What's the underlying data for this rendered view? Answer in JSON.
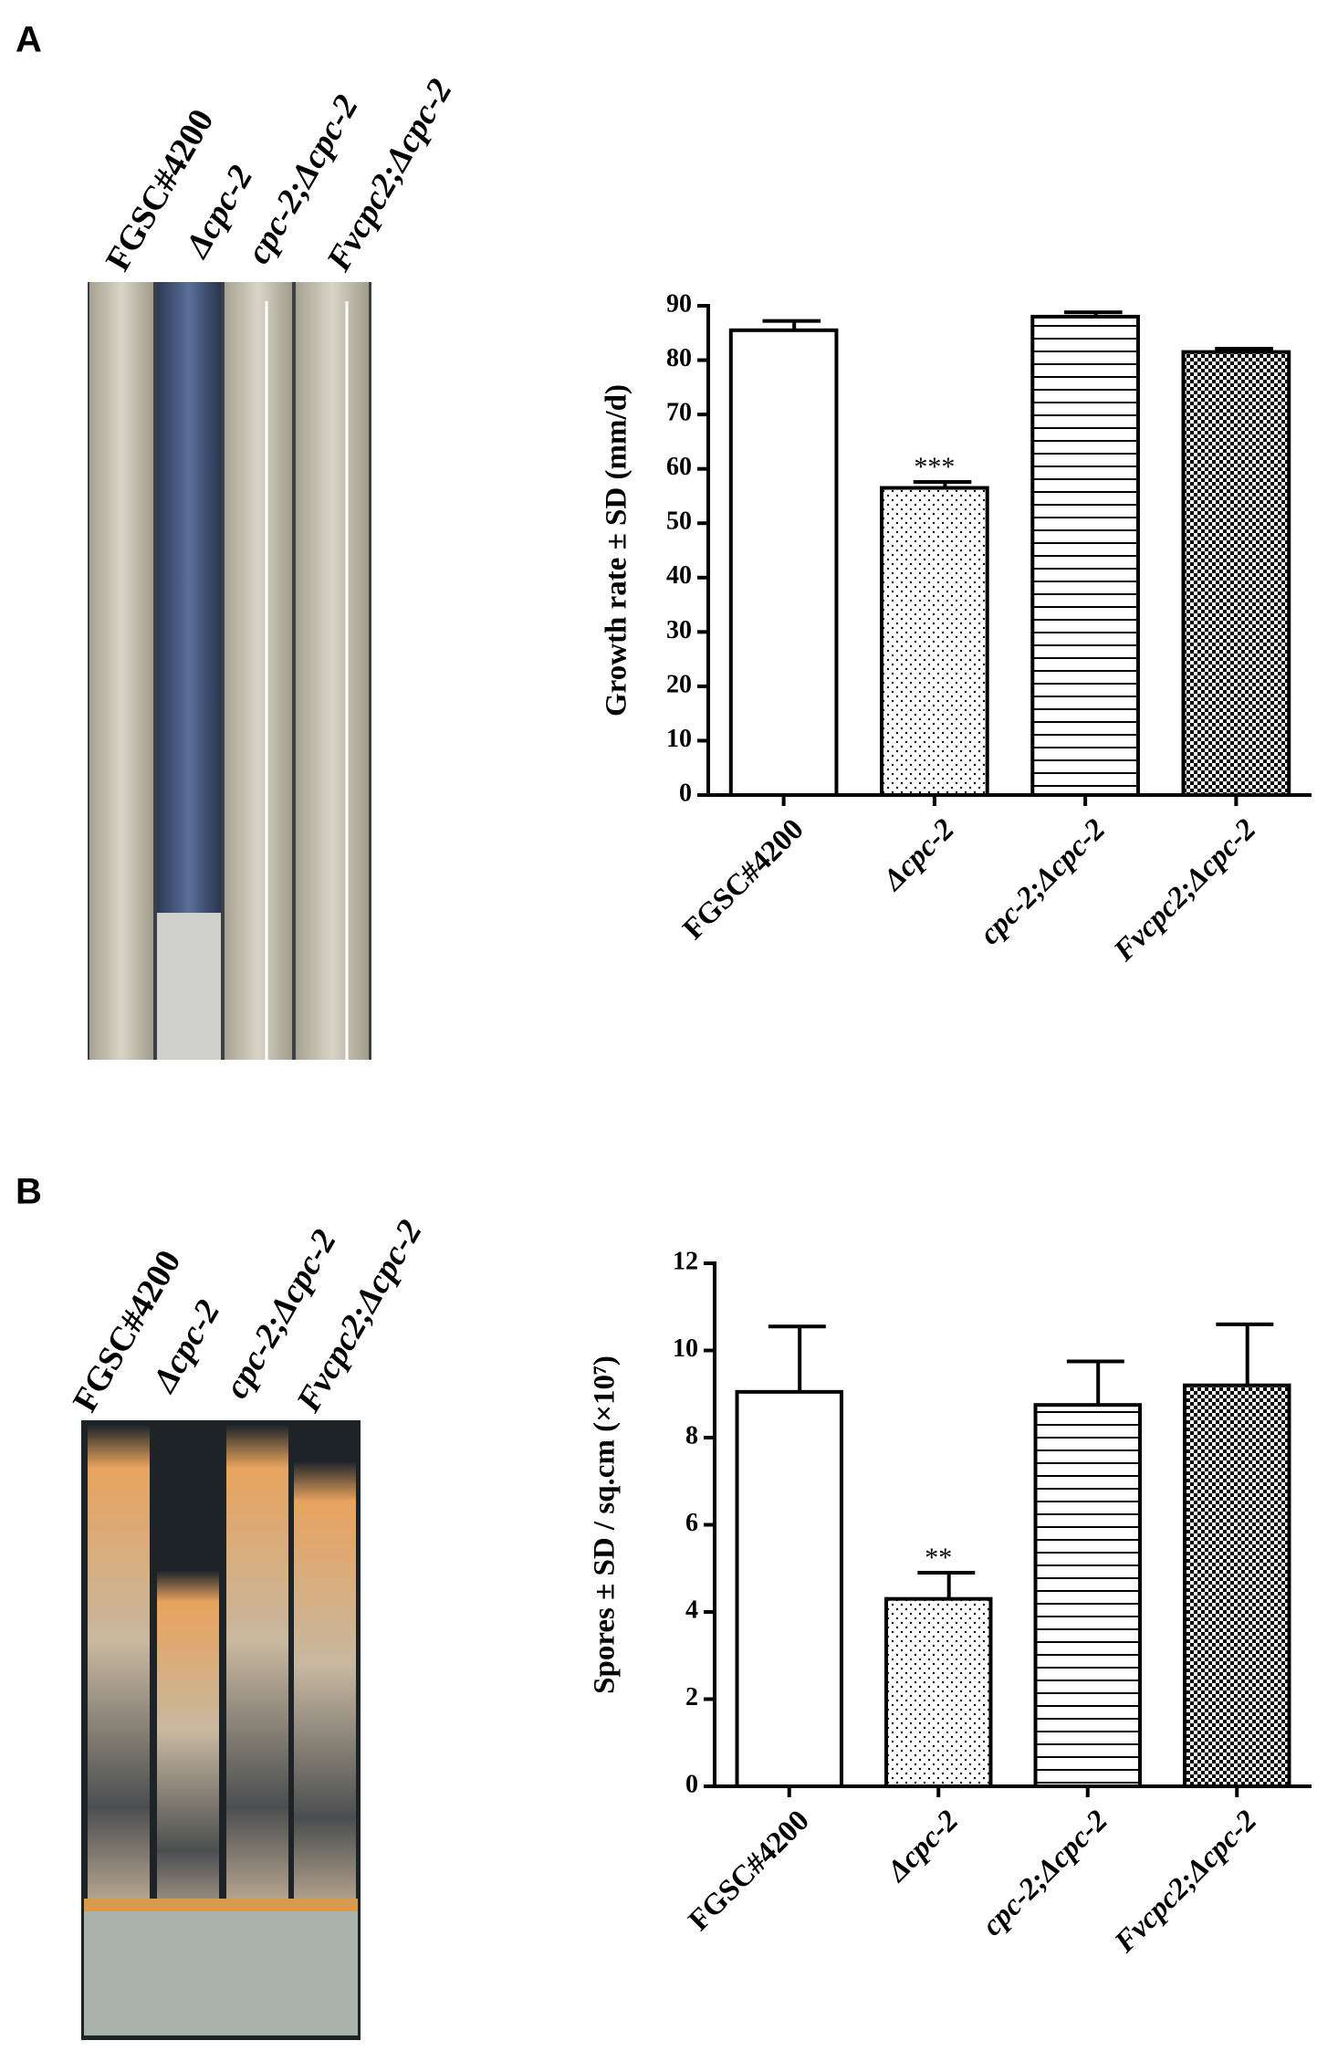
{
  "panels": [
    {
      "label": "A",
      "tube_labels": [
        "FGSC#4200",
        "Δcpc-2",
        "cpc-2;Δcpc-2",
        "Fvcpc2;Δcpc-2"
      ]
    },
    {
      "label": "B",
      "tube_labels": [
        "FGSC#4200",
        "Δcpc-2",
        "cpc-2;Δcpc-2",
        "Fvcpc2;Δcpc-2"
      ]
    }
  ],
  "chart_data": [
    {
      "type": "bar",
      "ylabel": "Growth rate ± SD (mm/d)",
      "categories": [
        "FGSC#4200",
        "Δcpc-2",
        "cpc-2;Δcpc-2",
        "Fvcpc2;Δcpc-2"
      ],
      "values": [
        85.5,
        56.5,
        88,
        81.5
      ],
      "errors": [
        1.7,
        1.1,
        0.8,
        0.6
      ],
      "significance": [
        null,
        "***",
        null,
        null
      ],
      "patterns": [
        "none",
        "dots",
        "hlines",
        "checker"
      ],
      "color": "#000000",
      "ylim": [
        0,
        90
      ],
      "yticks": [
        0,
        10,
        20,
        30,
        40,
        50,
        60,
        70,
        80,
        90
      ]
    },
    {
      "type": "bar",
      "ylabel": "Spores ± SD / sq.cm (×10⁷)",
      "categories": [
        "FGSC#4200",
        "Δcpc-2",
        "cpc-2;Δcpc-2",
        "Fvcpc2;Δcpc-2"
      ],
      "values": [
        9.05,
        4.3,
        8.75,
        9.2
      ],
      "errors": [
        1.5,
        0.6,
        1.0,
        1.4
      ],
      "significance": [
        null,
        "**",
        null,
        null
      ],
      "patterns": [
        "none",
        "dots",
        "hlines",
        "checker"
      ],
      "color": "#000000",
      "ylim": [
        0,
        12
      ],
      "yticks": [
        0,
        2,
        4,
        6,
        8,
        10,
        12
      ]
    }
  ]
}
